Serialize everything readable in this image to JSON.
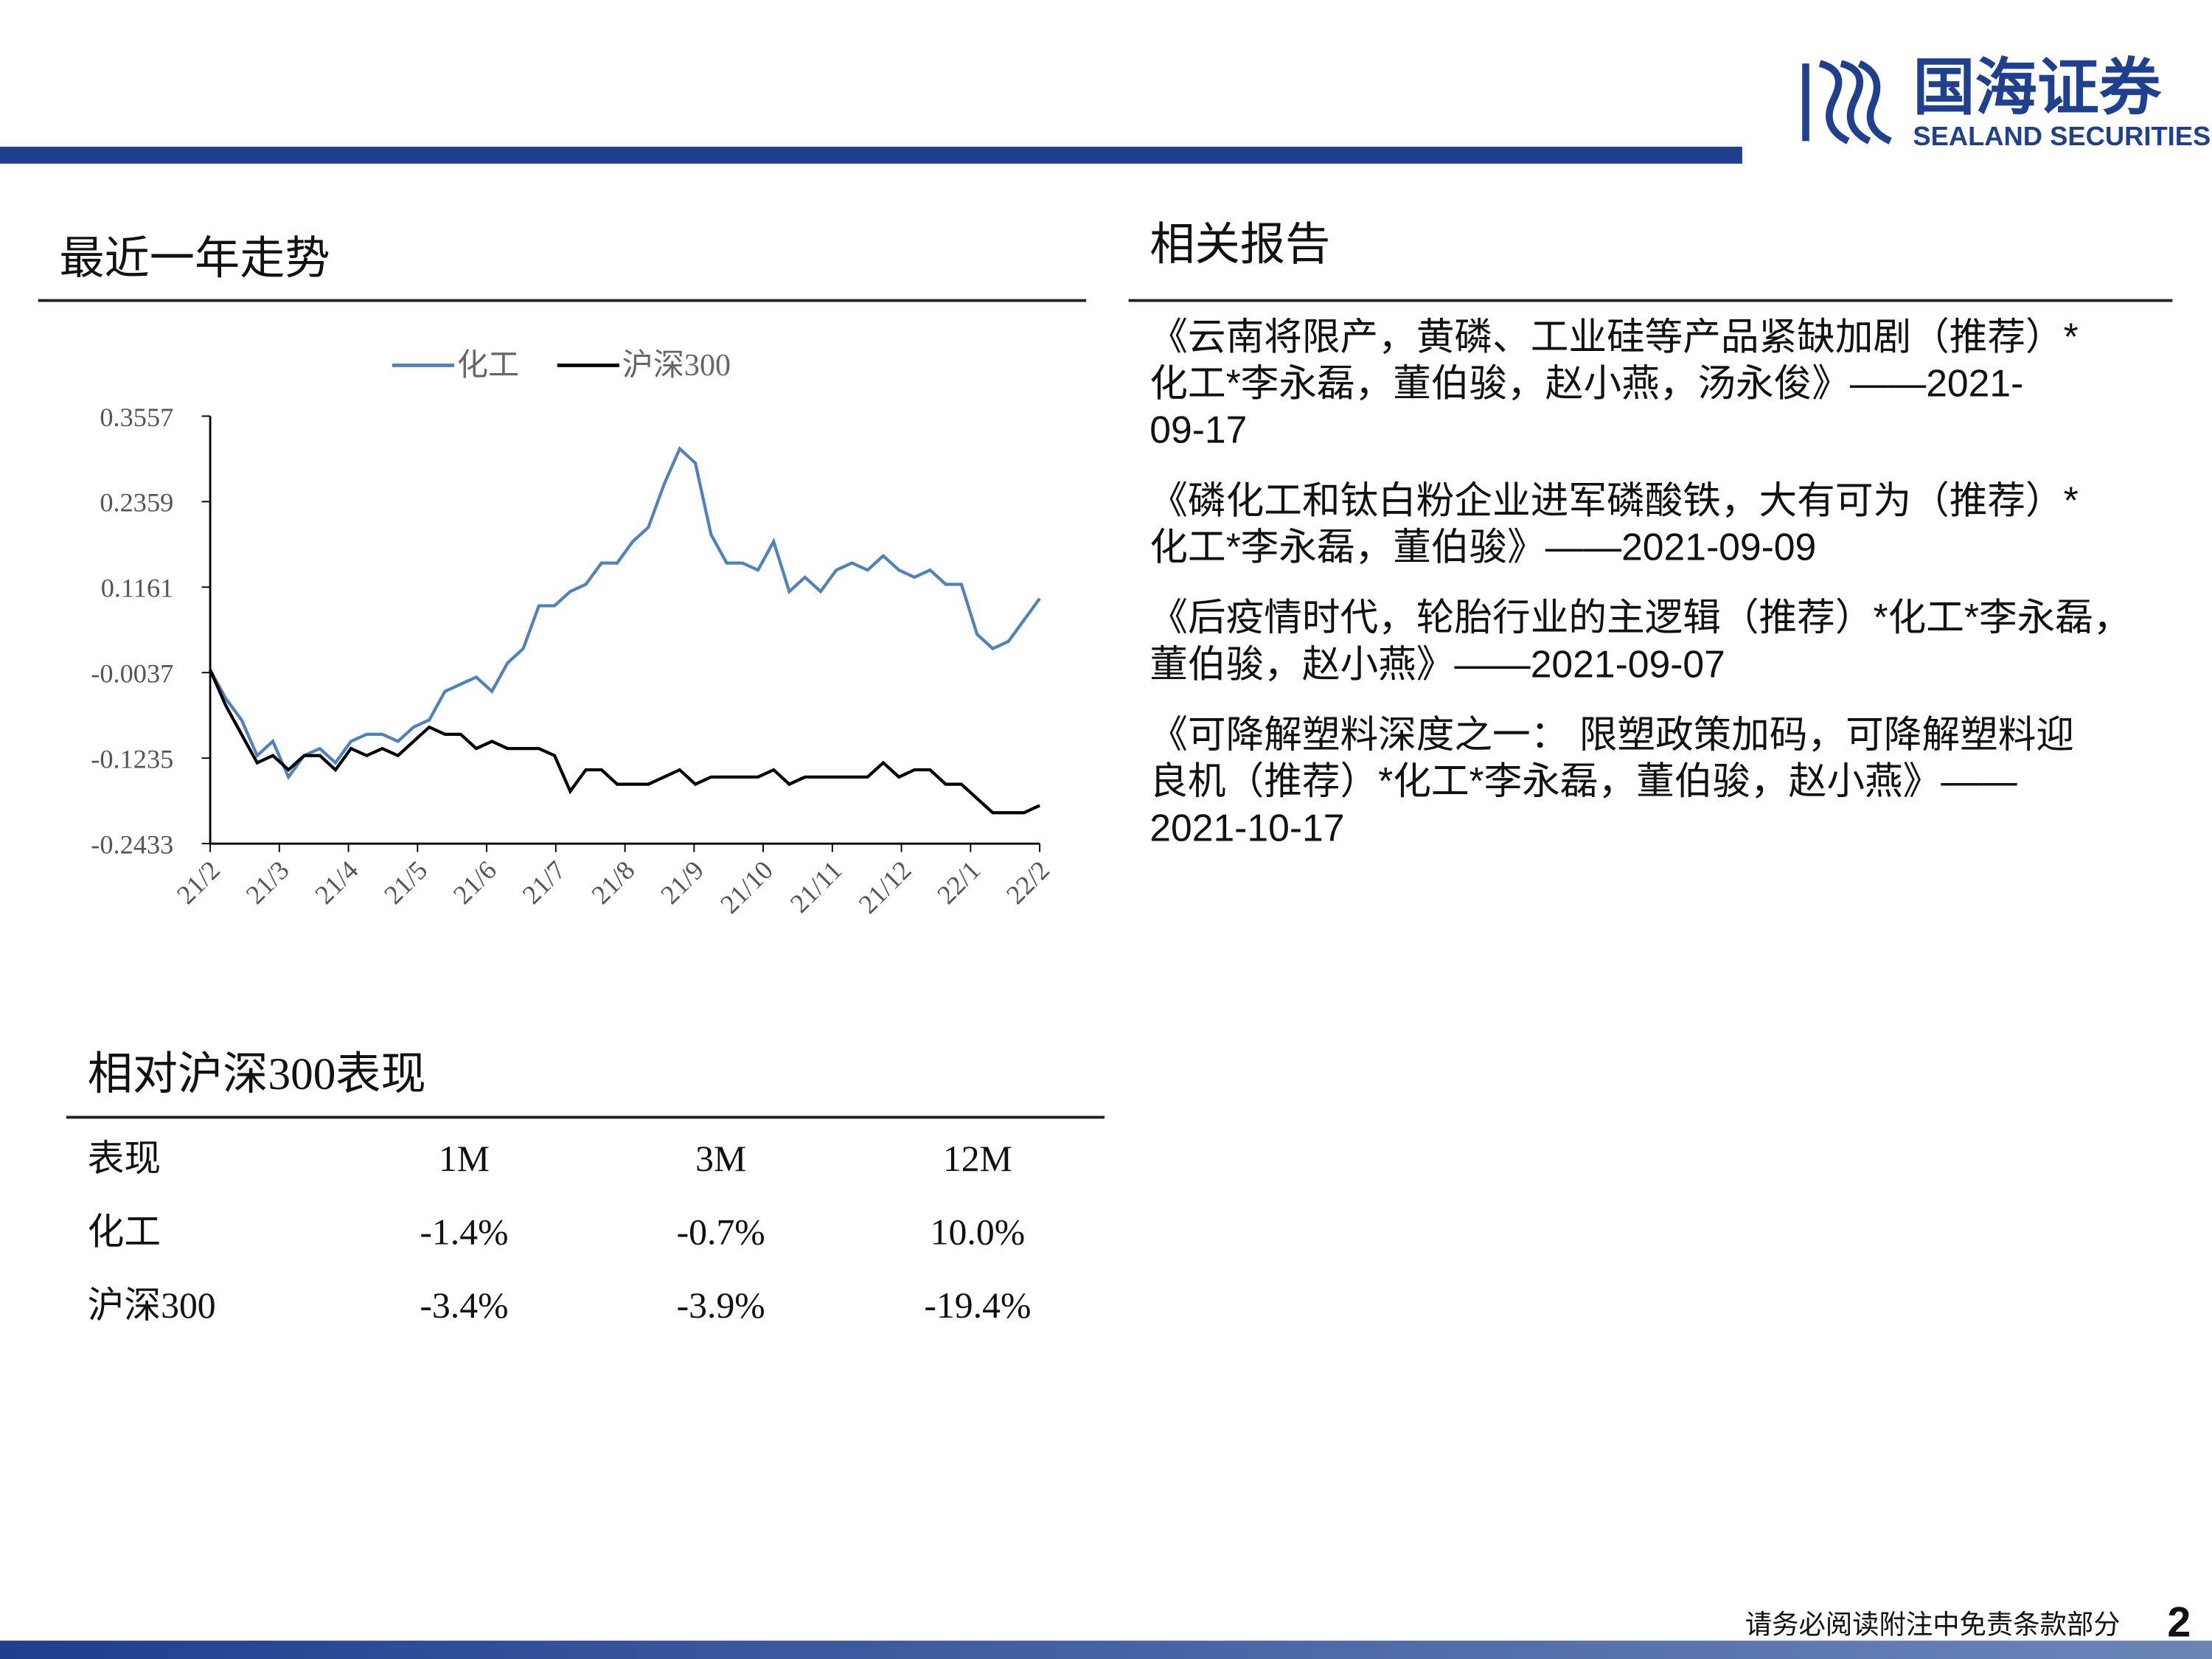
{
  "header": {
    "logo_cn": "国海证券",
    "logo_en": "SEALAND SECURITIES"
  },
  "trend": {
    "title": "最近一年走势",
    "chart_data": {
      "type": "line",
      "x_axis_labels": [
        "21/2",
        "21/3",
        "21/4",
        "21/5",
        "21/6",
        "21/7",
        "21/8",
        "21/9",
        "21/10",
        "21/11",
        "21/12",
        "22/1",
        "22/2"
      ],
      "ylim": [
        -0.2433,
        0.3557
      ],
      "yticks": [
        0.3557,
        0.2359,
        0.1161,
        -0.0037,
        -0.1235,
        -0.2433
      ],
      "legend": "top",
      "series": [
        {
          "name": "化工",
          "color": "#4f81bd",
          "values": [
            -0.0,
            -0.04,
            -0.07,
            -0.12,
            -0.1,
            -0.15,
            -0.12,
            -0.11,
            -0.13,
            -0.1,
            -0.09,
            -0.09,
            -0.1,
            -0.08,
            -0.07,
            -0.03,
            -0.02,
            -0.01,
            -0.03,
            0.01,
            0.03,
            0.09,
            0.09,
            0.11,
            0.12,
            0.15,
            0.15,
            0.18,
            0.2,
            0.26,
            0.31,
            0.29,
            0.19,
            0.15,
            0.15,
            0.14,
            0.18,
            0.11,
            0.13,
            0.11,
            0.14,
            0.15,
            0.14,
            0.16,
            0.14,
            0.13,
            0.14,
            0.12,
            0.12,
            0.05,
            0.03,
            0.04,
            0.07,
            0.1
          ]
        },
        {
          "name": "沪深300",
          "color": "#000000",
          "values": [
            -0.0,
            -0.05,
            -0.09,
            -0.13,
            -0.12,
            -0.14,
            -0.12,
            -0.12,
            -0.14,
            -0.11,
            -0.12,
            -0.11,
            -0.12,
            -0.1,
            -0.08,
            -0.09,
            -0.09,
            -0.11,
            -0.1,
            -0.11,
            -0.11,
            -0.11,
            -0.12,
            -0.17,
            -0.14,
            -0.14,
            -0.16,
            -0.16,
            -0.16,
            -0.15,
            -0.14,
            -0.16,
            -0.15,
            -0.15,
            -0.15,
            -0.15,
            -0.14,
            -0.16,
            -0.15,
            -0.15,
            -0.15,
            -0.15,
            -0.15,
            -0.13,
            -0.15,
            -0.14,
            -0.14,
            -0.16,
            -0.16,
            -0.18,
            -0.2,
            -0.2,
            -0.2,
            -0.19
          ]
        }
      ]
    }
  },
  "reports": {
    "title": "相关报告",
    "items": [
      {
        "lines": [
          "《云南将限产，黄磷、工业硅等产品紧缺加剧（推荐）*",
          "化工*李永磊，董伯骏，赵小燕，汤永俊》——2021-",
          "09-17"
        ]
      },
      {
        "lines": [
          "《磷化工和钛白粉企业进军磷酸铁，大有可为（推荐）*",
          "化工*李永磊，董伯骏》——2021-09-09"
        ]
      },
      {
        "lines": [
          "《后疫情时代，轮胎行业的主逻辑（推荐）*化工*李永磊，",
          "董伯骏，赵小燕》——2021-09-07"
        ]
      },
      {
        "lines": [
          "《可降解塑料深度之一： 限塑政策加码，可降解塑料迎",
          "良机（推荐）*化工*李永磊，董伯骏，赵小燕》——",
          "2021-10-17"
        ]
      }
    ]
  },
  "table": {
    "title": "相对沪深300表现",
    "header": [
      "表现",
      "1M",
      "3M",
      "12M"
    ],
    "rows": [
      [
        "化工",
        "-1.4%",
        "-0.7%",
        "10.0%"
      ],
      [
        "沪深300",
        "-3.4%",
        "-3.9%",
        "-19.4%"
      ]
    ]
  },
  "footer": {
    "disclaimer": "请务必阅读附注中免责条款部分",
    "page": "2"
  }
}
